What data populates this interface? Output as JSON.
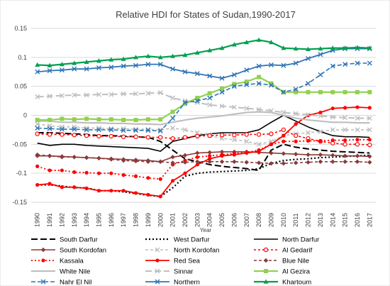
{
  "chart_data": {
    "type": "line",
    "title": "Relative HDI for States of Sudan,1990-2017",
    "xlabel": "Year",
    "ylabel": "",
    "ylim": [
      -0.15,
      0.15
    ],
    "yticks": [
      -0.15,
      -0.1,
      -0.05,
      0,
      0.05,
      0.1,
      0.15
    ],
    "ytick_labels": [
      "-0.15",
      "-0.1",
      "-0.05",
      "0",
      "0.05",
      "0.1",
      "0.15"
    ],
    "grid": true,
    "legend_position": "bottom",
    "x": [
      "1990",
      "1991",
      "1992",
      "1993",
      "1994",
      "1995",
      "1996",
      "1997",
      "1998",
      "1999",
      "2000",
      "2001",
      "2002",
      "2003",
      "2004",
      "2005",
      "2006",
      "2007",
      "2008",
      "2009",
      "2010",
      "2011",
      "2012",
      "2013",
      "2014",
      "2015",
      "2016",
      "2017"
    ],
    "series": [
      {
        "name": "South Darfur",
        "color": "#000000",
        "dash": "9,4",
        "width": 2,
        "marker": "none",
        "values": [
          -0.03,
          -0.03,
          -0.031,
          -0.032,
          -0.033,
          -0.035,
          -0.035,
          -0.036,
          -0.037,
          -0.038,
          -0.045,
          -0.06,
          -0.075,
          -0.08,
          -0.085,
          -0.088,
          -0.09,
          -0.092,
          -0.095,
          -0.06,
          -0.05,
          -0.055,
          -0.058,
          -0.06,
          -0.062,
          -0.063,
          -0.064,
          -0.065
        ]
      },
      {
        "name": "West Darfur",
        "color": "#000000",
        "dash": "2,3",
        "width": 2.2,
        "marker": "none",
        "values": [
          -0.12,
          -0.12,
          -0.122,
          -0.125,
          -0.125,
          -0.13,
          -0.13,
          -0.132,
          -0.135,
          -0.138,
          -0.14,
          -0.125,
          -0.105,
          -0.1,
          -0.098,
          -0.097,
          -0.096,
          -0.095,
          -0.092,
          -0.083,
          -0.078,
          -0.076,
          -0.075,
          -0.073,
          -0.072,
          -0.071,
          -0.07,
          -0.069
        ]
      },
      {
        "name": "North Darfur",
        "color": "#000000",
        "dash": "",
        "width": 1.6,
        "marker": "none",
        "values": [
          -0.048,
          -0.052,
          -0.05,
          -0.05,
          -0.052,
          -0.053,
          -0.054,
          -0.055,
          -0.056,
          -0.057,
          -0.062,
          -0.045,
          -0.04,
          -0.035,
          -0.032,
          -0.03,
          -0.03,
          -0.03,
          -0.025,
          -0.012,
          0.0,
          -0.01,
          -0.02,
          -0.028,
          -0.035,
          -0.037,
          -0.037,
          -0.038
        ]
      },
      {
        "name": "South Kordofan",
        "color": "#8B3A3A",
        "dash": "",
        "width": 1.6,
        "marker": "diamond-filled",
        "values": [
          -0.07,
          -0.07,
          -0.071,
          -0.072,
          -0.073,
          -0.074,
          -0.075,
          -0.076,
          -0.077,
          -0.078,
          -0.08,
          -0.072,
          -0.069,
          -0.065,
          -0.064,
          -0.063,
          -0.063,
          -0.063,
          -0.064,
          -0.065,
          -0.066,
          -0.067,
          -0.068,
          -0.068,
          -0.069,
          -0.07,
          -0.07,
          -0.071
        ]
      },
      {
        "name": "North Kordofan",
        "color": "#BFBFBF",
        "dash": "4,3",
        "width": 1.6,
        "marker": "x",
        "values": [
          -0.015,
          -0.018,
          -0.02,
          -0.02,
          -0.022,
          -0.022,
          -0.023,
          -0.023,
          -0.024,
          -0.024,
          -0.025,
          -0.022,
          -0.025,
          -0.03,
          -0.035,
          -0.04,
          -0.042,
          -0.045,
          -0.05,
          -0.045,
          -0.035,
          -0.032,
          -0.03,
          -0.028,
          -0.025,
          -0.025,
          -0.025,
          -0.025
        ]
      },
      {
        "name": "Al Gedarif",
        "color": "#FF0000",
        "dash": "3,3",
        "width": 1.6,
        "marker": "circle-open",
        "values": [
          -0.032,
          -0.033,
          -0.033,
          -0.034,
          -0.035,
          -0.036,
          -0.036,
          -0.037,
          -0.037,
          -0.038,
          -0.038,
          -0.04,
          -0.038,
          -0.036,
          -0.035,
          -0.034,
          -0.034,
          -0.033,
          -0.033,
          -0.032,
          -0.025,
          -0.035,
          -0.04,
          -0.045,
          -0.048,
          -0.05,
          -0.05,
          -0.051
        ]
      },
      {
        "name": "Kassala",
        "color": "#FF0000",
        "dash": "2,3",
        "width": 1.8,
        "marker": "circle-filled",
        "values": [
          -0.088,
          -0.095,
          -0.095,
          -0.098,
          -0.099,
          -0.1,
          -0.1,
          -0.103,
          -0.105,
          -0.108,
          -0.11,
          -0.085,
          -0.078,
          -0.072,
          -0.07,
          -0.068,
          -0.066,
          -0.064,
          -0.06,
          -0.05,
          -0.045,
          -0.045,
          -0.044,
          -0.044,
          -0.043,
          -0.043,
          -0.042,
          -0.042
        ]
      },
      {
        "name": "Red Sea",
        "color": "#FF0000",
        "dash": "",
        "width": 1.8,
        "marker": "circle-filled",
        "values": [
          -0.12,
          -0.118,
          -0.124,
          -0.124,
          -0.126,
          -0.13,
          -0.13,
          -0.13,
          -0.134,
          -0.137,
          -0.14,
          -0.113,
          -0.1,
          -0.085,
          -0.075,
          -0.07,
          -0.068,
          -0.065,
          -0.062,
          -0.05,
          -0.035,
          -0.015,
          0.0,
          0.005,
          0.012,
          0.013,
          0.014,
          0.013
        ]
      },
      {
        "name": "Blue Nile",
        "color": "#8B3A3A",
        "dash": "4,3",
        "width": 1.6,
        "marker": "diamond-filled",
        "values": [
          -0.068,
          -0.07,
          -0.072,
          -0.072,
          -0.073,
          -0.074,
          -0.076,
          -0.078,
          -0.079,
          -0.08,
          -0.08,
          -0.082,
          -0.081,
          -0.08,
          -0.08,
          -0.08,
          -0.08,
          -0.081,
          -0.082,
          -0.083,
          -0.083,
          -0.082,
          -0.081,
          -0.08,
          -0.08,
          -0.08,
          -0.08,
          -0.081
        ]
      },
      {
        "name": "White Nile",
        "color": "#BFBFBF",
        "dash": "",
        "width": 2.2,
        "marker": "none",
        "values": [
          -0.01,
          -0.01,
          -0.012,
          -0.012,
          -0.013,
          -0.013,
          -0.014,
          -0.014,
          -0.015,
          -0.015,
          -0.016,
          -0.012,
          -0.008,
          -0.005,
          -0.003,
          -0.001,
          0.002,
          0.005,
          0.006,
          0.005,
          0.0,
          -0.005,
          -0.008,
          -0.01,
          -0.012,
          -0.012,
          -0.013,
          -0.013
        ]
      },
      {
        "name": "Sinnar",
        "color": "#BFBFBF",
        "dash": "9,4",
        "width": 2,
        "marker": "x",
        "values": [
          0.032,
          0.033,
          0.034,
          0.035,
          0.035,
          0.036,
          0.036,
          0.037,
          0.037,
          0.038,
          0.039,
          0.03,
          0.025,
          0.022,
          0.018,
          0.016,
          0.014,
          0.012,
          0.01,
          0.008,
          0.005,
          0.003,
          0.001,
          -0.001,
          -0.003,
          -0.004,
          -0.005,
          -0.005
        ]
      },
      {
        "name": "Al Gezira",
        "color": "#92D050",
        "dash": "",
        "width": 2.2,
        "marker": "square-filled",
        "values": [
          -0.008,
          -0.008,
          -0.006,
          -0.007,
          -0.006,
          -0.007,
          -0.007,
          -0.008,
          -0.008,
          -0.007,
          -0.007,
          0.006,
          0.02,
          0.03,
          0.038,
          0.046,
          0.054,
          0.058,
          0.066,
          0.055,
          0.04,
          0.04,
          0.04,
          0.04,
          0.04,
          0.04,
          0.04,
          0.04
        ]
      },
      {
        "name": "Nahr El Nil",
        "color": "#2E75B6",
        "dash": "6,3",
        "width": 1.6,
        "marker": "x",
        "values": [
          -0.022,
          -0.023,
          -0.024,
          -0.024,
          -0.025,
          -0.025,
          -0.025,
          -0.026,
          -0.026,
          -0.026,
          -0.027,
          -0.005,
          0.022,
          0.025,
          0.03,
          0.04,
          0.05,
          0.053,
          0.055,
          0.052,
          0.04,
          0.045,
          0.055,
          0.07,
          0.085,
          0.088,
          0.09,
          0.09
        ]
      },
      {
        "name": "Northern",
        "color": "#2E75B6",
        "dash": "",
        "width": 1.8,
        "marker": "x",
        "values": [
          0.075,
          0.077,
          0.078,
          0.08,
          0.08,
          0.082,
          0.083,
          0.085,
          0.086,
          0.088,
          0.088,
          0.08,
          0.075,
          0.072,
          0.068,
          0.064,
          0.07,
          0.078,
          0.085,
          0.087,
          0.086,
          0.09,
          0.098,
          0.105,
          0.112,
          0.115,
          0.115,
          0.115
        ]
      },
      {
        "name": "Khartoum",
        "color": "#00A050",
        "dash": "",
        "width": 2.2,
        "marker": "triangle-filled",
        "values": [
          0.087,
          0.086,
          0.088,
          0.09,
          0.092,
          0.094,
          0.096,
          0.097,
          0.1,
          0.102,
          0.1,
          0.102,
          0.104,
          0.108,
          0.112,
          0.116,
          0.122,
          0.126,
          0.13,
          0.126,
          0.116,
          0.115,
          0.114,
          0.115,
          0.116,
          0.116,
          0.117,
          0.116
        ]
      }
    ]
  }
}
